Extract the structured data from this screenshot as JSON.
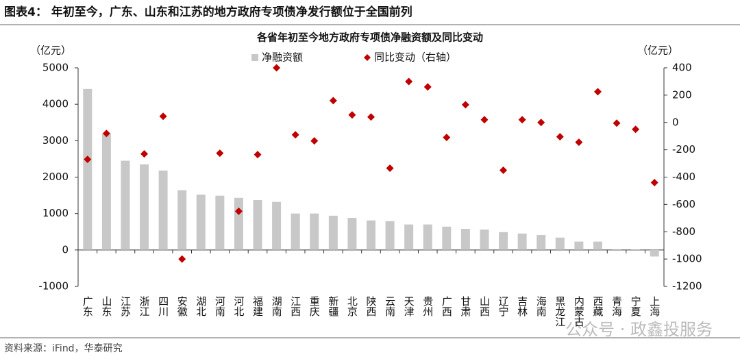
{
  "header": "图表4：   年初至今，广东、山东和江苏的地方政府专项债净发行额位于全国前列",
  "source": "资料来源：iFind，华泰研究",
  "watermark": "公众号 · 政鑫投服务",
  "chart_data": {
    "type": "bar",
    "title": "各省年初至今地方政府专项债净融资额及同比变动",
    "y_label": "（亿元）",
    "y2_label": "（亿元）",
    "categories": [
      "广东",
      "山东",
      "江苏",
      "浙江",
      "四川",
      "安徽",
      "湖北",
      "河南",
      "河北",
      "福建",
      "湖南",
      "江西",
      "重庆",
      "新疆",
      "北京",
      "陕西",
      "云南",
      "天津",
      "贵州",
      "广西",
      "甘肃",
      "山西",
      "辽宁",
      "吉林",
      "海南",
      "黑龙江",
      "内蒙古",
      "西藏",
      "青海",
      "宁夏",
      "上海"
    ],
    "series": [
      {
        "name": "净融资额",
        "type": "bar",
        "color": "#c8c8c8",
        "values": [
          4420,
          3200,
          2450,
          2350,
          2180,
          1640,
          1520,
          1490,
          1430,
          1370,
          1320,
          1000,
          1000,
          940,
          880,
          810,
          790,
          700,
          700,
          640,
          580,
          560,
          490,
          450,
          410,
          340,
          230,
          230,
          20,
          10,
          -180
        ]
      },
      {
        "name": "同比变动（右轴）",
        "type": "scatter",
        "axis": "y2",
        "color": "#c00000",
        "values": [
          -270,
          -80,
          null,
          -230,
          45,
          -1000,
          null,
          -225,
          -650,
          -235,
          400,
          -90,
          -135,
          160,
          55,
          40,
          -335,
          300,
          260,
          -110,
          130,
          20,
          -350,
          20,
          0,
          -105,
          -145,
          225,
          -5,
          -50,
          -440
        ]
      }
    ],
    "ylim": [
      -1000,
      5000
    ],
    "yticks": [
      -1000,
      0,
      1000,
      2000,
      3000,
      4000,
      5000
    ],
    "y2lim": [
      -1200,
      400
    ],
    "y2ticks": [
      -1200,
      -1000,
      -800,
      -600,
      -400,
      -200,
      0,
      200,
      400
    ],
    "grid": false,
    "legend": "top"
  }
}
